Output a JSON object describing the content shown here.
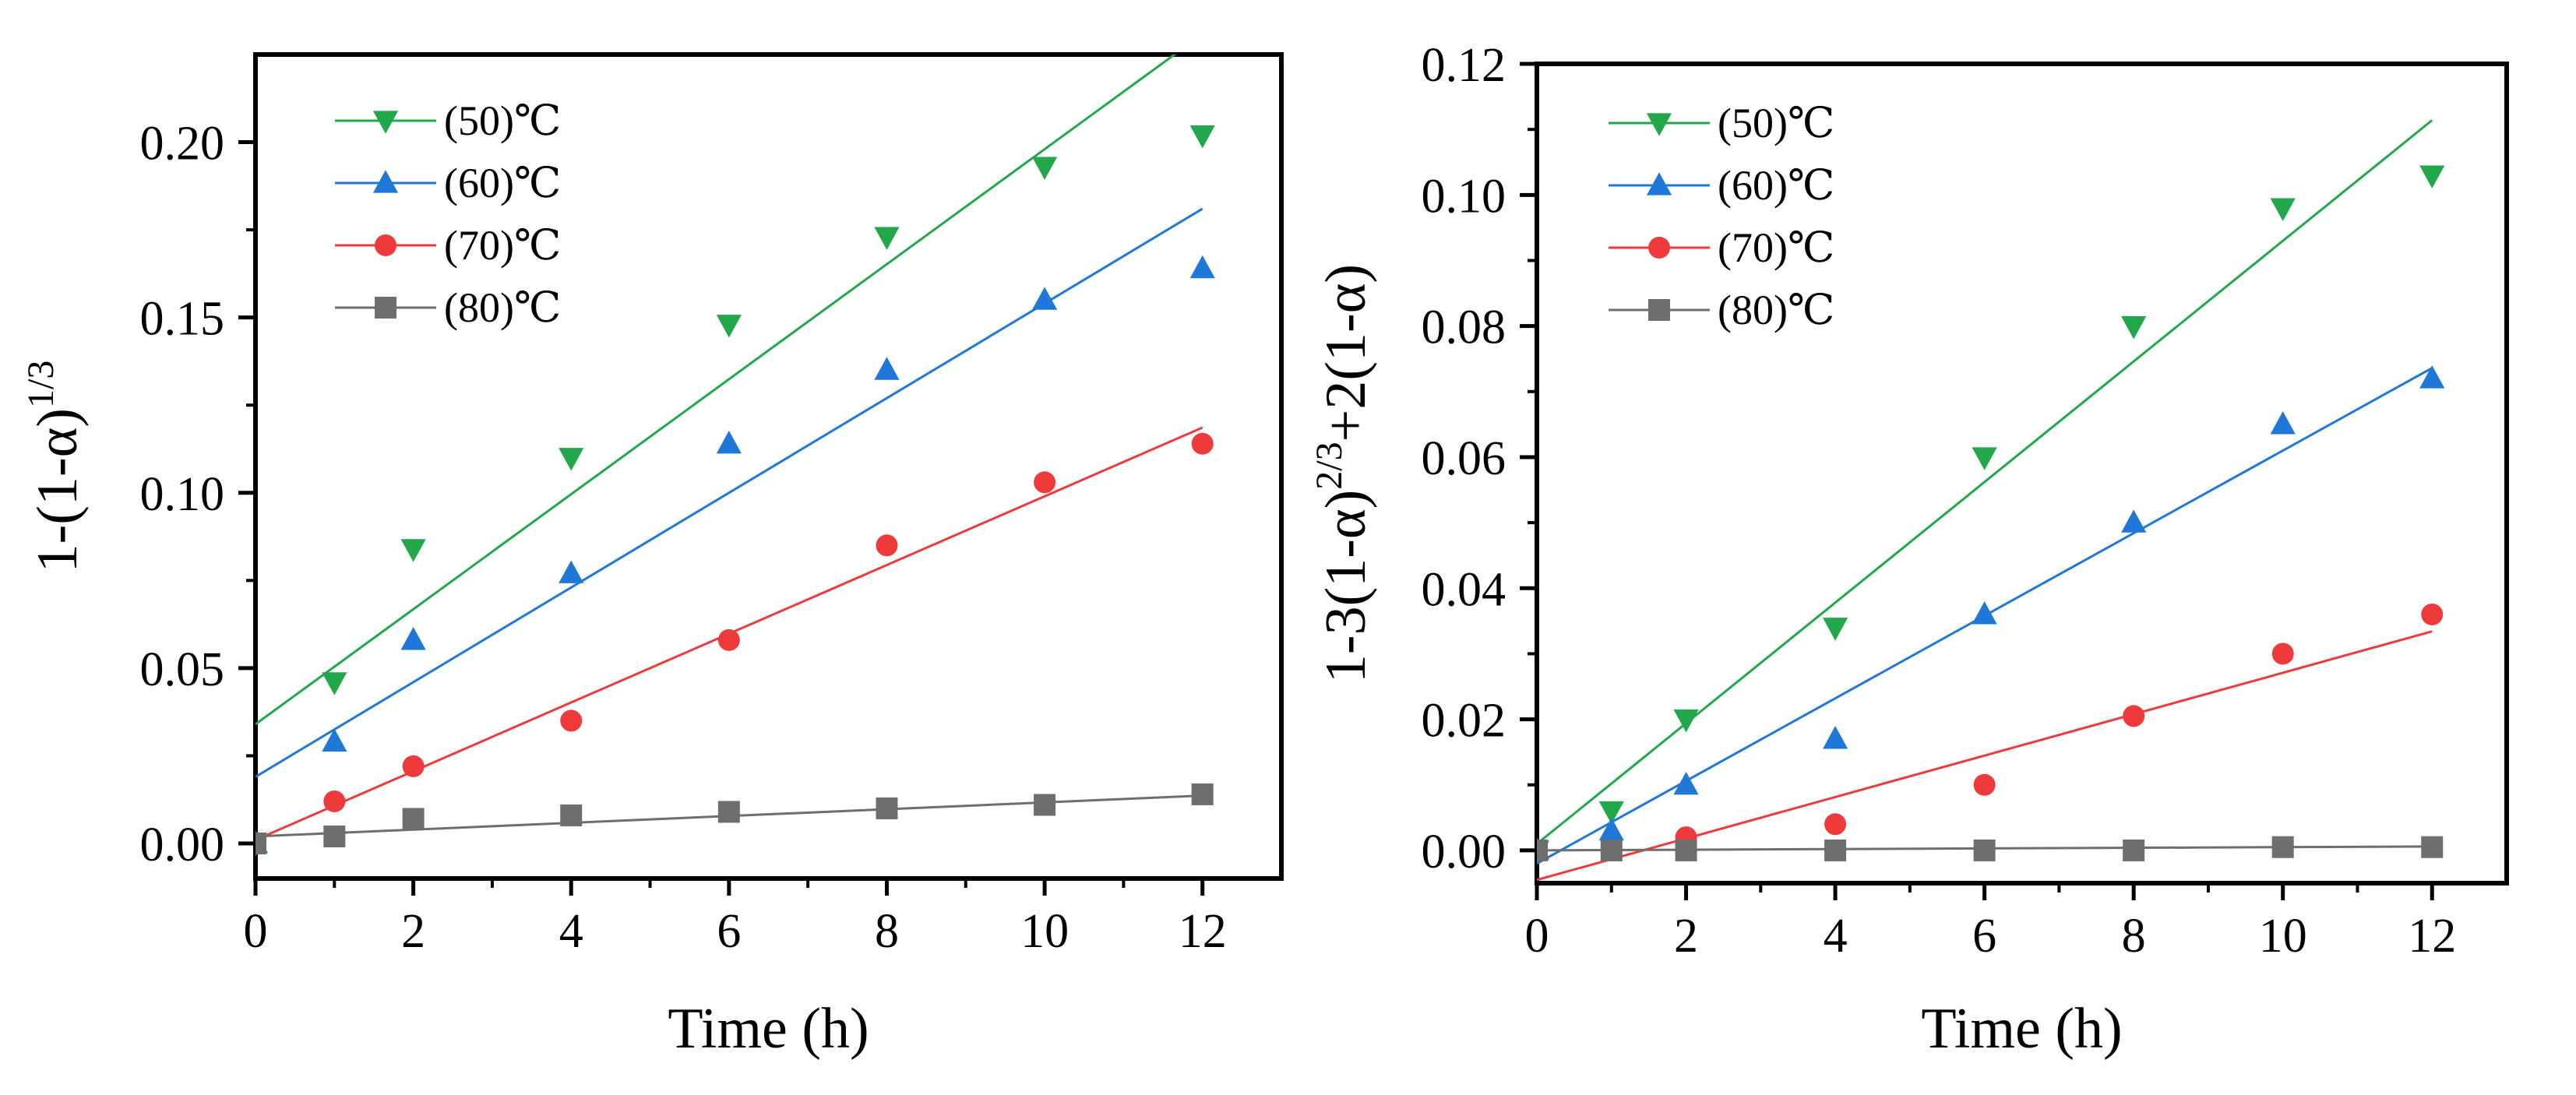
{
  "chart_data": [
    {
      "type": "scatter",
      "title": "",
      "xlabel": "Time (h)",
      "ylabel": "1-(1-α)^1/3",
      "ylabel_parts": {
        "main": "1-(1-α)",
        "sup": "1/3"
      },
      "xlim": [
        0,
        13
      ],
      "ylim": [
        -0.01,
        0.225
      ],
      "x_ticks": [
        0,
        2,
        4,
        6,
        8,
        10,
        12
      ],
      "x_tick_labels": [
        "0",
        "2",
        "4",
        "6",
        "8",
        "10",
        "12"
      ],
      "y_ticks": [
        0.0,
        0.05,
        0.1,
        0.15,
        0.2
      ],
      "y_tick_labels": [
        "0.00",
        "0.05",
        "0.10",
        "0.15",
        "0.20"
      ],
      "grid": false,
      "legend_position": "top-left",
      "series": [
        {
          "name": "(50)℃",
          "marker": "triangle-down",
          "color": "#22a84a",
          "x": [
            0,
            1,
            2,
            4,
            6,
            8,
            10,
            12
          ],
          "values": [
            0.0,
            0.046,
            0.084,
            0.11,
            0.148,
            0.173,
            0.193,
            0.202
          ],
          "fit": {
            "intercept": 0.034,
            "slope": 0.0164
          }
        },
        {
          "name": "(60)℃",
          "marker": "triangle-up",
          "color": "#1f78d8",
          "x": [
            0,
            1,
            2,
            4,
            6,
            8,
            10,
            12
          ],
          "values": [
            0.0,
            0.029,
            0.058,
            0.077,
            0.114,
            0.135,
            0.155,
            0.164
          ],
          "fit": {
            "intercept": 0.019,
            "slope": 0.0135
          }
        },
        {
          "name": "(70)℃",
          "marker": "circle",
          "color": "#ee3a3a",
          "x": [
            0,
            1,
            2,
            4,
            6,
            8,
            10,
            12
          ],
          "values": [
            0.0,
            0.012,
            0.022,
            0.035,
            0.058,
            0.085,
            0.103,
            0.114
          ],
          "fit": {
            "intercept": 0.001,
            "slope": 0.0098
          }
        },
        {
          "name": "(80)℃",
          "marker": "square",
          "color": "#6e6e6e",
          "x": [
            0,
            1,
            2,
            4,
            6,
            8,
            10,
            12
          ],
          "values": [
            0.0,
            0.002,
            0.007,
            0.008,
            0.009,
            0.01,
            0.011,
            0.014
          ],
          "fit": {
            "intercept": 0.002,
            "slope": 0.00097
          }
        }
      ]
    },
    {
      "type": "scatter",
      "title": "",
      "xlabel": "Time (h)",
      "ylabel": "1-3(1-α)^2/3+2(1-α)",
      "ylabel_parts": {
        "main": "1-3(1-α)",
        "sup": "2/3",
        "rest": "+2(1-α)"
      },
      "xlim": [
        0,
        13
      ],
      "ylim": [
        -0.005,
        0.12
      ],
      "x_ticks": [
        0,
        2,
        4,
        6,
        8,
        10,
        12
      ],
      "x_tick_labels": [
        "0",
        "2",
        "4",
        "6",
        "8",
        "10",
        "12"
      ],
      "y_ticks": [
        0.0,
        0.02,
        0.04,
        0.06,
        0.08,
        0.1,
        0.12
      ],
      "y_tick_labels": [
        "0.00",
        "0.02",
        "0.04",
        "0.06",
        "0.08",
        "0.10",
        "0.12"
      ],
      "grid": false,
      "legend_position": "top-left",
      "series": [
        {
          "name": "(50)℃",
          "marker": "triangle-down",
          "color": "#22a84a",
          "x": [
            0,
            1,
            2,
            4,
            6,
            8,
            10,
            12
          ],
          "values": [
            0.0,
            0.006,
            0.02,
            0.034,
            0.06,
            0.08,
            0.098,
            0.103
          ],
          "fit": {
            "intercept": 0.001,
            "slope": 0.0092
          }
        },
        {
          "name": "(60)℃",
          "marker": "triangle-up",
          "color": "#1f78d8",
          "x": [
            0,
            1,
            2,
            4,
            6,
            8,
            10,
            12
          ],
          "values": [
            0.0,
            0.003,
            0.01,
            0.017,
            0.036,
            0.05,
            0.065,
            0.072
          ],
          "fit": {
            "intercept": -0.002,
            "slope": 0.0063
          }
        },
        {
          "name": "(70)℃",
          "marker": "circle",
          "color": "#ee3a3a",
          "x": [
            0,
            1,
            2,
            4,
            6,
            8,
            10,
            12
          ],
          "values": [
            0.0,
            0.0,
            0.002,
            0.004,
            0.01,
            0.0205,
            0.03,
            0.036
          ],
          "fit": {
            "intercept": -0.0045,
            "slope": 0.00316
          }
        },
        {
          "name": "(80)℃",
          "marker": "square",
          "color": "#6e6e6e",
          "x": [
            0,
            1,
            2,
            4,
            6,
            8,
            10,
            12
          ],
          "values": [
            0.0,
            0.0,
            0.0,
            0.0,
            0.0,
            0.0,
            0.0005,
            0.0005
          ],
          "fit": {
            "intercept": 0.0,
            "slope": 5e-05
          }
        }
      ]
    }
  ]
}
